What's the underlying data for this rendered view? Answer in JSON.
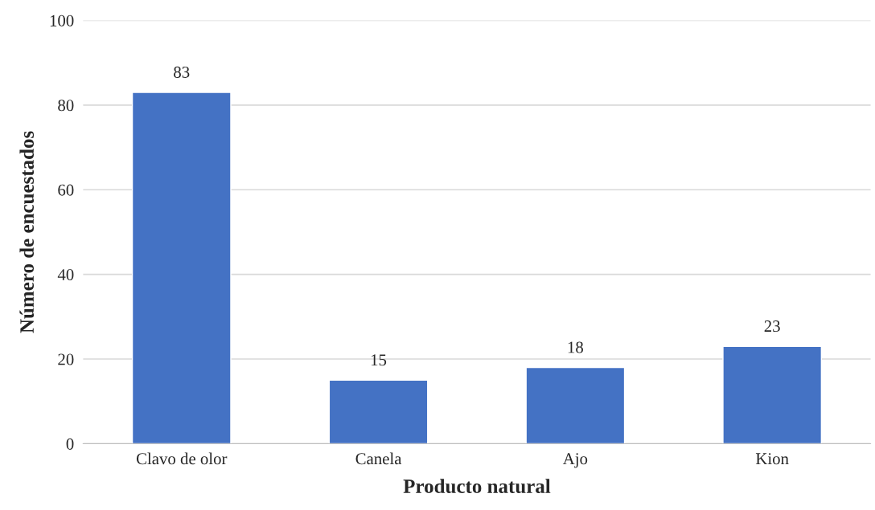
{
  "chart_data": {
    "type": "bar",
    "xlabel": "Producto natural",
    "ylabel": "Número de encuestados",
    "categories": [
      "Clavo de olor",
      "Canela",
      "Ajo",
      "Kion"
    ],
    "values": [
      83,
      15,
      18,
      23
    ],
    "color": "#4472c4",
    "ylim": [
      0,
      100
    ],
    "yticks": [
      0,
      20,
      40,
      60,
      80,
      100
    ],
    "grid": "y",
    "data_labels": true
  }
}
